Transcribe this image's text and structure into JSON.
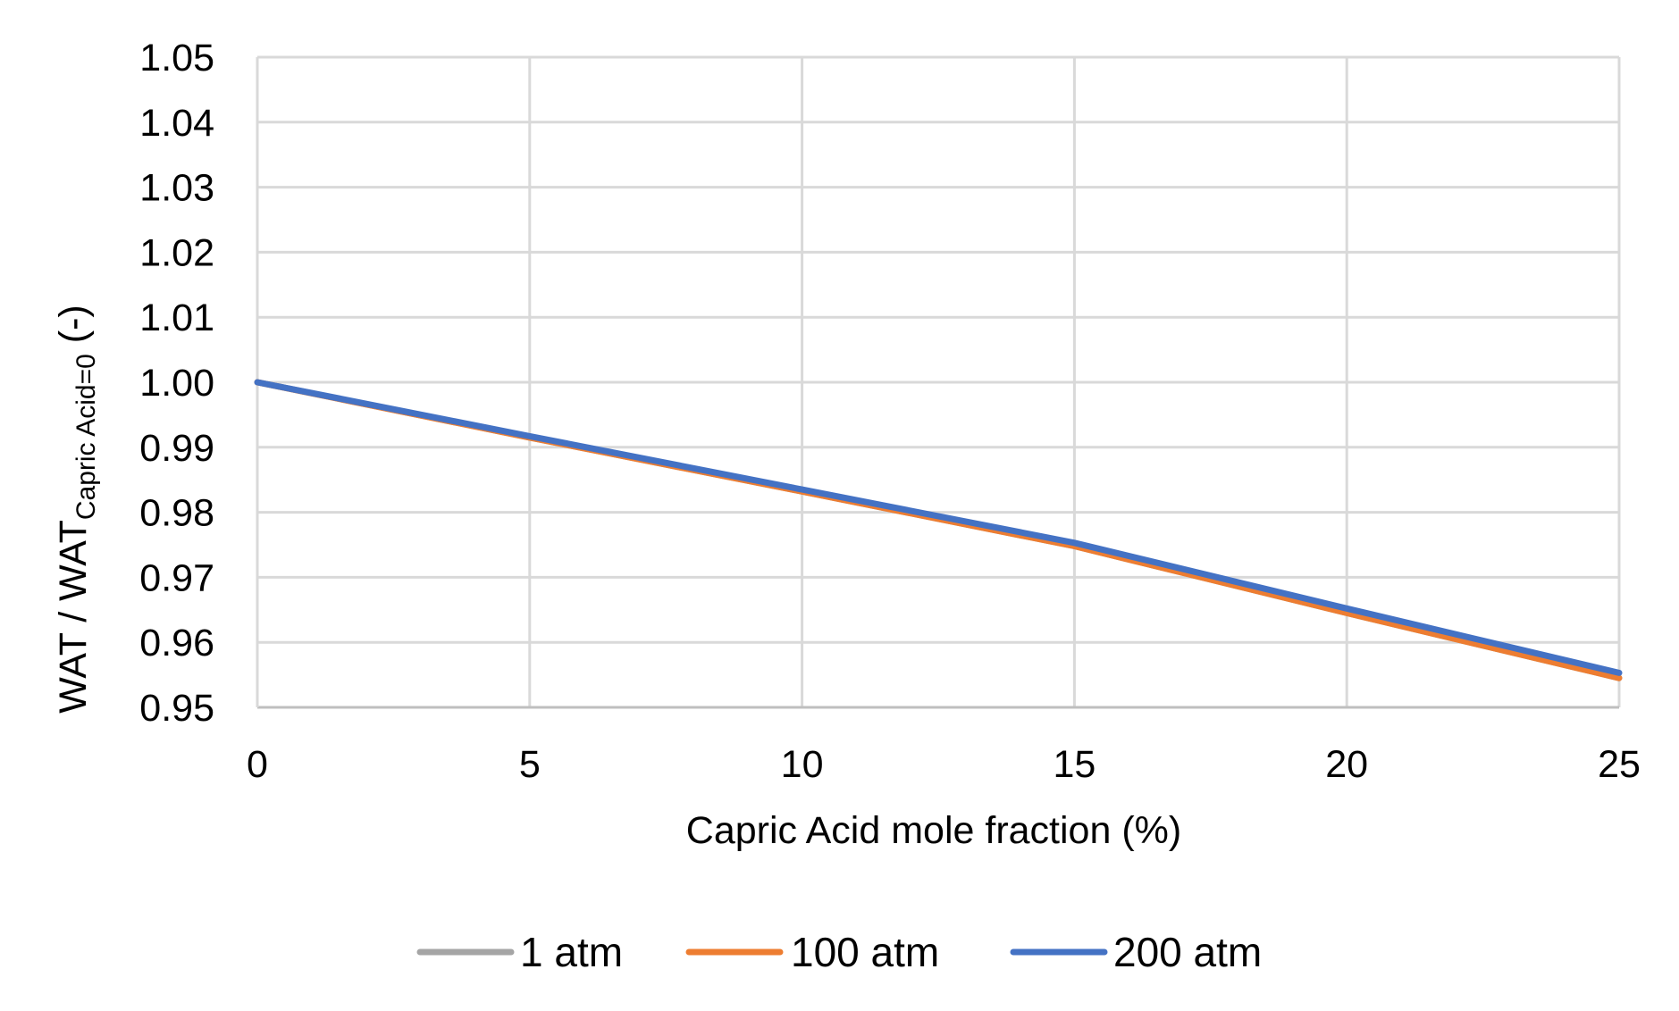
{
  "chart_data": {
    "type": "line",
    "xlabel": "Capric Acid mole fraction (%)",
    "ylabel": {
      "main": "WAT / WAT",
      "subscript": "Capric Acid=0",
      "suffix": " (-)"
    },
    "xlim": [
      0,
      25
    ],
    "ylim": [
      0.95,
      1.05
    ],
    "x_ticks": [
      "0",
      "5",
      "10",
      "15",
      "20",
      "25"
    ],
    "y_ticks": [
      "0.95",
      "0.96",
      "0.97",
      "0.98",
      "0.99",
      "1.00",
      "1.01",
      "1.02",
      "1.03",
      "1.04",
      "1.05"
    ],
    "grid": true,
    "legend_position": "bottom",
    "x": [
      0,
      5,
      10,
      15,
      20,
      25
    ],
    "series": [
      {
        "name": "1 atm",
        "color": "#a5a5a5",
        "values": [
          1.0,
          0.9915,
          0.9832,
          0.9748,
          0.9645,
          0.9545
        ]
      },
      {
        "name": "100 atm",
        "color": "#ed7d31",
        "values": [
          1.0,
          0.9915,
          0.9832,
          0.9748,
          0.9645,
          0.9545
        ]
      },
      {
        "name": "200 atm",
        "color": "#4472c4",
        "values": [
          1.0,
          0.9917,
          0.9835,
          0.9753,
          0.9652,
          0.9553
        ]
      }
    ]
  }
}
